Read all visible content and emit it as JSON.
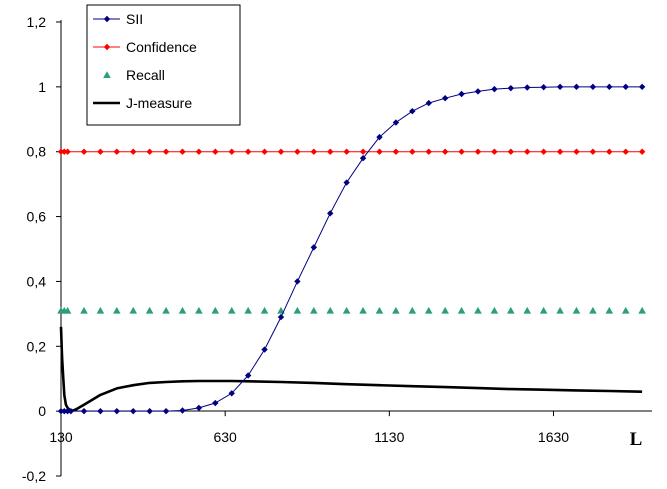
{
  "chart_data": {
    "type": "line",
    "title": "",
    "xlabel": "L",
    "ylabel": "",
    "xlim": [
      130,
      1930
    ],
    "ylim": [
      -0.2,
      1.2
    ],
    "x_ticks": [
      "130",
      "630",
      "1130",
      "1630"
    ],
    "y_ticks": [
      "-0,2",
      "0",
      "0,2",
      "0,4",
      "0,6",
      "0,8",
      "1",
      "1,2"
    ],
    "grid": false,
    "legend_position": "top-left",
    "series": [
      {
        "name": "SII",
        "color": "#000080",
        "marker": "diamond",
        "line": true,
        "x": [
          130,
          140,
          150,
          160,
          200,
          250,
          300,
          350,
          400,
          450,
          500,
          550,
          600,
          650,
          700,
          750,
          800,
          850,
          900,
          950,
          1000,
          1050,
          1100,
          1150,
          1200,
          1250,
          1300,
          1350,
          1400,
          1450,
          1500,
          1550,
          1600,
          1650,
          1700,
          1750,
          1800,
          1850,
          1900
        ],
        "y": [
          0.0,
          0.0,
          0.0,
          0.0,
          0.0,
          0.0,
          0.0,
          0.0,
          0.0,
          0.0,
          0.002,
          0.01,
          0.025,
          0.055,
          0.11,
          0.19,
          0.29,
          0.4,
          0.505,
          0.61,
          0.705,
          0.78,
          0.845,
          0.89,
          0.925,
          0.95,
          0.965,
          0.978,
          0.986,
          0.993,
          0.996,
          0.998,
          0.999,
          1.0,
          1.0,
          1.0,
          1.0,
          1.0,
          1.0
        ]
      },
      {
        "name": "Confidence",
        "color": "#ff0000",
        "marker": "diamond",
        "line": true,
        "x": [
          130,
          140,
          150,
          200,
          250,
          300,
          350,
          400,
          450,
          500,
          550,
          600,
          650,
          700,
          750,
          800,
          850,
          900,
          950,
          1000,
          1050,
          1100,
          1150,
          1200,
          1250,
          1300,
          1350,
          1400,
          1450,
          1500,
          1550,
          1600,
          1650,
          1700,
          1750,
          1800,
          1850,
          1900
        ],
        "y": [
          0.8,
          0.8,
          0.8,
          0.8,
          0.8,
          0.8,
          0.8,
          0.8,
          0.8,
          0.8,
          0.8,
          0.8,
          0.8,
          0.8,
          0.8,
          0.8,
          0.8,
          0.8,
          0.8,
          0.8,
          0.8,
          0.8,
          0.8,
          0.8,
          0.8,
          0.8,
          0.8,
          0.8,
          0.8,
          0.8,
          0.8,
          0.8,
          0.8,
          0.8,
          0.8,
          0.8,
          0.8,
          0.8
        ]
      },
      {
        "name": "Recall",
        "color": "#2e9e79",
        "marker": "triangle",
        "line": false,
        "x": [
          130,
          140,
          150,
          200,
          250,
          300,
          350,
          400,
          450,
          500,
          550,
          600,
          650,
          700,
          750,
          800,
          850,
          900,
          950,
          1000,
          1050,
          1100,
          1150,
          1200,
          1250,
          1300,
          1350,
          1400,
          1450,
          1500,
          1550,
          1600,
          1650,
          1700,
          1750,
          1800,
          1850,
          1900
        ],
        "y": [
          0.31,
          0.31,
          0.31,
          0.31,
          0.31,
          0.31,
          0.31,
          0.31,
          0.31,
          0.31,
          0.31,
          0.31,
          0.31,
          0.31,
          0.31,
          0.31,
          0.31,
          0.31,
          0.31,
          0.31,
          0.31,
          0.31,
          0.31,
          0.31,
          0.31,
          0.31,
          0.31,
          0.31,
          0.31,
          0.31,
          0.31,
          0.31,
          0.31,
          0.31,
          0.31,
          0.31,
          0.31,
          0.31
        ]
      },
      {
        "name": "J-measure",
        "color": "#000000",
        "marker": "none",
        "line": true,
        "x": [
          130,
          133,
          137,
          140,
          145,
          150,
          160,
          175,
          200,
          250,
          300,
          350,
          400,
          450,
          500,
          550,
          600,
          650,
          700,
          800,
          900,
          1000,
          1100,
          1200,
          1300,
          1400,
          1500,
          1600,
          1700,
          1800,
          1900
        ],
        "y": [
          0.26,
          0.17,
          0.1,
          0.05,
          0.02,
          0.01,
          0.0,
          0.005,
          0.02,
          0.05,
          0.07,
          0.08,
          0.087,
          0.09,
          0.092,
          0.093,
          0.093,
          0.093,
          0.092,
          0.09,
          0.087,
          0.083,
          0.08,
          0.077,
          0.074,
          0.071,
          0.068,
          0.066,
          0.064,
          0.062,
          0.06
        ]
      }
    ]
  }
}
